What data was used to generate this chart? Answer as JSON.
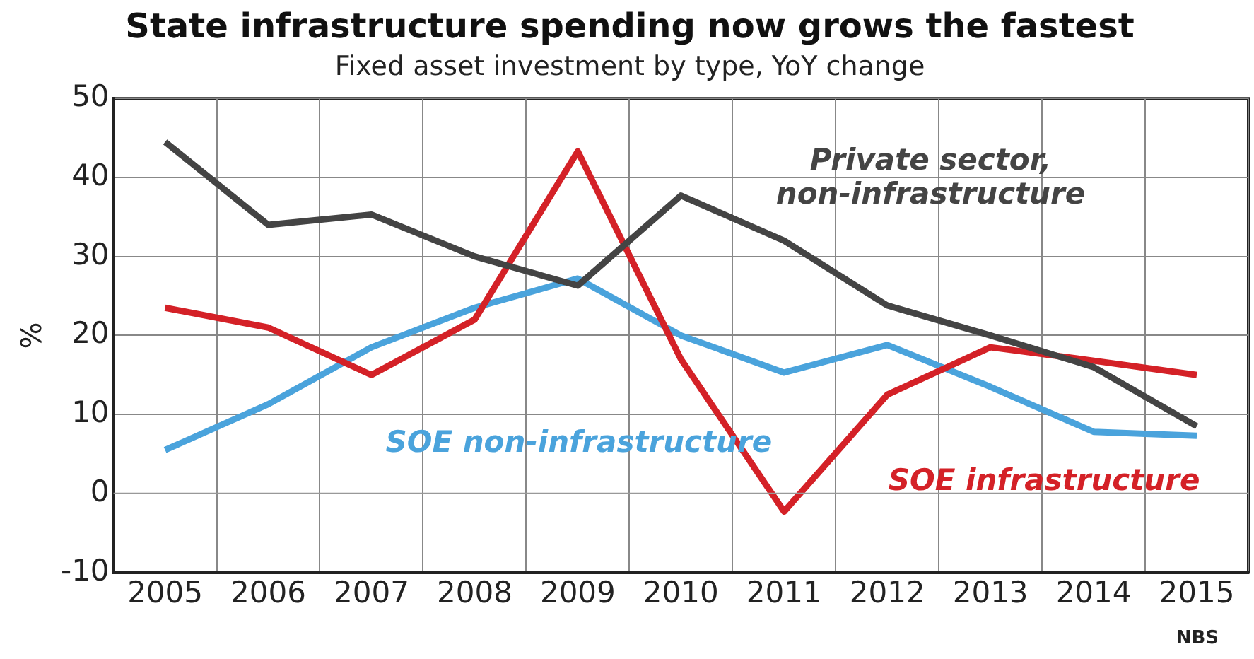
{
  "chart_data": {
    "type": "line",
    "title": "State infrastructure spending now grows the fastest",
    "subtitle": "Fixed asset investment by type, YoY change",
    "ylabel": "%",
    "categories": [
      "2005",
      "2006",
      "2007",
      "2008",
      "2009",
      "2010",
      "2011",
      "2012",
      "2013",
      "2014",
      "2015"
    ],
    "series": [
      {
        "name": "Private sector, non-infrastructure",
        "color": "#444444",
        "values": [
          44.5,
          34,
          35.3,
          30,
          26.3,
          37.7,
          32,
          23.8,
          20,
          16,
          8.5
        ]
      },
      {
        "name": "SOE infrastructure",
        "color": "#d42127",
        "values": [
          23.5,
          21,
          15,
          22,
          43.3,
          17,
          -2.3,
          12.5,
          18.5,
          16.8,
          15
        ]
      },
      {
        "name": "SOE non-infrastructure",
        "color": "#4aa3dc",
        "values": [
          5.5,
          11.3,
          18.5,
          23.5,
          27.2,
          20,
          15.3,
          18.8,
          13.5,
          7.8,
          7.3
        ]
      }
    ],
    "ylim": [
      -10,
      50
    ],
    "yticks": [
      -10,
      0,
      10,
      20,
      30,
      40,
      50
    ],
    "grid": true,
    "legend": false,
    "marker": "none",
    "line_style": "solid",
    "annotations": [
      "NBS"
    ]
  }
}
